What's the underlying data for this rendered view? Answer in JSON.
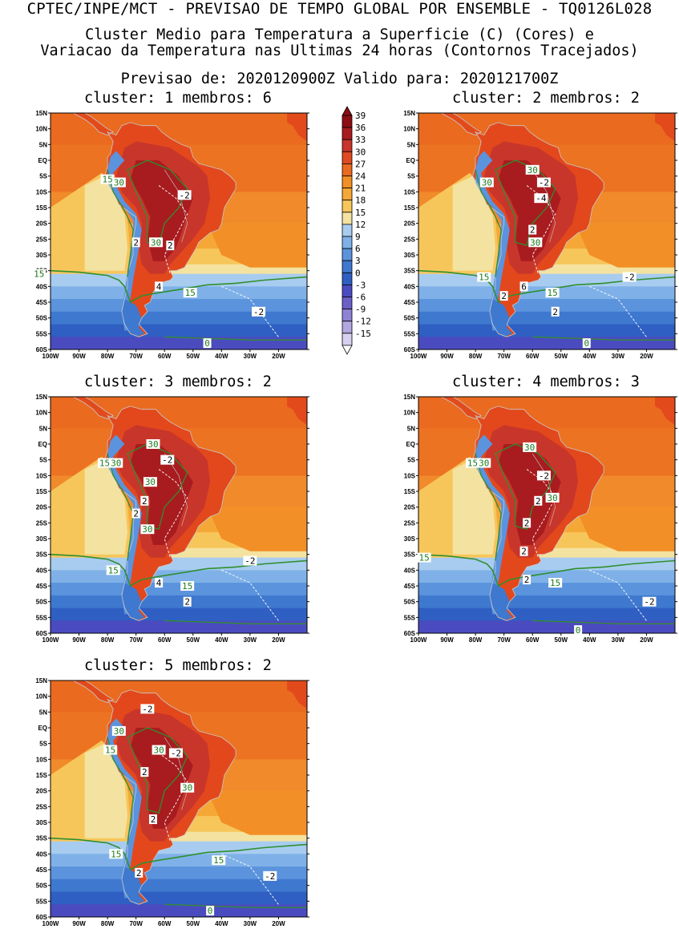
{
  "header": {
    "line1": "CPTEC/INPE/MCT - PREVISAO DE TEMPO GLOBAL POR ENSEMBLE - TQ0126L028",
    "line2": "Cluster Medio para Temperatura a Superficie (C) (Cores) e",
    "line3": "Variacao da Temperatura nas Ultimas 24 horas (Contornos Tracejados)",
    "line4": "Previsao de: 2020120900Z    Valido para: 2020121700Z"
  },
  "axes": {
    "lat_labels": [
      "15N",
      "10N",
      "5N",
      "EQ",
      "5S",
      "10S",
      "15S",
      "20S",
      "25S",
      "30S",
      "35S",
      "40S",
      "45S",
      "50S",
      "55S",
      "60S"
    ],
    "lon_labels": [
      "100W",
      "90W",
      "80W",
      "70W",
      "60W",
      "50W",
      "40W",
      "30W",
      "20W"
    ]
  },
  "colorbar": {
    "labels": [
      "39",
      "36",
      "33",
      "30",
      "27",
      "24",
      "21",
      "18",
      "15",
      "12",
      "9",
      "6",
      "3",
      "0",
      "-3",
      "-6",
      "-9",
      "-12",
      "-15"
    ],
    "colors": [
      "#8c0d12",
      "#a81c1f",
      "#c8352b",
      "#e04a20",
      "#ea6a1f",
      "#f28f26",
      "#f5a836",
      "#f7c65b",
      "#f4e2a0",
      "#a8ccef",
      "#7fb1e8",
      "#5b93dd",
      "#3f78cf",
      "#2f5fc2",
      "#4b4bc0",
      "#6b60c8",
      "#8e82d4",
      "#b2a7e0",
      "#d8d0ef"
    ]
  },
  "clusters": [
    {
      "title": "cluster: 1   membros: 6",
      "labels": [
        {
          "t": "15",
          "k": "g",
          "lon": -80,
          "lat": -6
        },
        {
          "t": "30",
          "k": "g",
          "lon": -76,
          "lat": -7
        },
        {
          "t": "-2",
          "k": "w",
          "lon": -53,
          "lat": -11
        },
        {
          "t": "2",
          "k": "w",
          "lon": -70,
          "lat": -26
        },
        {
          "t": "30",
          "k": "g",
          "lon": -63,
          "lat": -26
        },
        {
          "t": "2",
          "k": "w",
          "lon": -58,
          "lat": -27
        },
        {
          "t": "15",
          "k": "g",
          "lon": -104,
          "lat": -36
        },
        {
          "t": "4",
          "k": "w",
          "lon": -62,
          "lat": -40
        },
        {
          "t": "15",
          "k": "g",
          "lon": -51,
          "lat": -42
        },
        {
          "t": "-2",
          "k": "w",
          "lon": -27,
          "lat": -48
        },
        {
          "t": "0",
          "k": "g",
          "lon": -45,
          "lat": -58
        }
      ]
    },
    {
      "title": "cluster: 2   membros: 2",
      "labels": [
        {
          "t": "30",
          "k": "g",
          "lon": -76,
          "lat": -7
        },
        {
          "t": "30",
          "k": "g",
          "lon": -60,
          "lat": -3
        },
        {
          "t": "-2",
          "k": "w",
          "lon": -56,
          "lat": -7
        },
        {
          "t": "-4",
          "k": "w",
          "lon": -57,
          "lat": -12
        },
        {
          "t": "2",
          "k": "w",
          "lon": -60,
          "lat": -22
        },
        {
          "t": "30",
          "k": "g",
          "lon": -59,
          "lat": -26
        },
        {
          "t": "15",
          "k": "g",
          "lon": -77,
          "lat": -37
        },
        {
          "t": "-2",
          "k": "w",
          "lon": -26,
          "lat": -37
        },
        {
          "t": "6",
          "k": "w",
          "lon": -63,
          "lat": -40
        },
        {
          "t": "2",
          "k": "w",
          "lon": -70,
          "lat": -43
        },
        {
          "t": "15",
          "k": "g",
          "lon": -53,
          "lat": -42
        },
        {
          "t": "2",
          "k": "w",
          "lon": -52,
          "lat": -48
        },
        {
          "t": "0",
          "k": "g",
          "lon": -41,
          "lat": -58
        }
      ]
    },
    {
      "title": "cluster: 3   membros: 2",
      "labels": [
        {
          "t": "30",
          "k": "g",
          "lon": -64,
          "lat": 0
        },
        {
          "t": "-2",
          "k": "w",
          "lon": -59,
          "lat": -5
        },
        {
          "t": "15",
          "k": "g",
          "lon": -81,
          "lat": -6
        },
        {
          "t": "30",
          "k": "g",
          "lon": -77,
          "lat": -6
        },
        {
          "t": "30",
          "k": "g",
          "lon": -65,
          "lat": -12
        },
        {
          "t": "2",
          "k": "w",
          "lon": -67,
          "lat": -18
        },
        {
          "t": "2",
          "k": "w",
          "lon": -70,
          "lat": -22
        },
        {
          "t": "30",
          "k": "g",
          "lon": -66,
          "lat": -27
        },
        {
          "t": "-2",
          "k": "w",
          "lon": -30,
          "lat": -37
        },
        {
          "t": "15",
          "k": "g",
          "lon": -78,
          "lat": -40
        },
        {
          "t": "4",
          "k": "w",
          "lon": -62,
          "lat": -44
        },
        {
          "t": "15",
          "k": "g",
          "lon": -52,
          "lat": -45
        },
        {
          "t": "2",
          "k": "w",
          "lon": -52,
          "lat": -50
        }
      ]
    },
    {
      "title": "cluster: 4   membros: 3",
      "labels": [
        {
          "t": "30",
          "k": "g",
          "lon": -61,
          "lat": -1
        },
        {
          "t": "15",
          "k": "g",
          "lon": -81,
          "lat": -6
        },
        {
          "t": "30",
          "k": "g",
          "lon": -77,
          "lat": -6
        },
        {
          "t": "-2",
          "k": "w",
          "lon": -56,
          "lat": -10
        },
        {
          "t": "30",
          "k": "g",
          "lon": -53,
          "lat": -17
        },
        {
          "t": "2",
          "k": "w",
          "lon": -58,
          "lat": -18
        },
        {
          "t": "2",
          "k": "w",
          "lon": -62,
          "lat": -25
        },
        {
          "t": "2",
          "k": "w",
          "lon": -63,
          "lat": -34
        },
        {
          "t": "15",
          "k": "g",
          "lon": -98,
          "lat": -36
        },
        {
          "t": "2",
          "k": "w",
          "lon": -62,
          "lat": -43
        },
        {
          "t": "15",
          "k": "g",
          "lon": -52,
          "lat": -44
        },
        {
          "t": "-2",
          "k": "w",
          "lon": -19,
          "lat": -50
        },
        {
          "t": "0",
          "k": "g",
          "lon": -44,
          "lat": -59
        }
      ]
    },
    {
      "title": "cluster: 5   membros: 2",
      "labels": [
        {
          "t": "-2",
          "k": "w",
          "lon": -66,
          "lat": 6
        },
        {
          "t": "30",
          "k": "g",
          "lon": -76,
          "lat": -1
        },
        {
          "t": "15",
          "k": "g",
          "lon": -79,
          "lat": -7
        },
        {
          "t": "30",
          "k": "g",
          "lon": -62,
          "lat": -7
        },
        {
          "t": "-2",
          "k": "w",
          "lon": -56,
          "lat": -8
        },
        {
          "t": "2",
          "k": "w",
          "lon": -67,
          "lat": -14
        },
        {
          "t": "30",
          "k": "g",
          "lon": -52,
          "lat": -19
        },
        {
          "t": "2",
          "k": "w",
          "lon": -64,
          "lat": -29
        },
        {
          "t": "15",
          "k": "g",
          "lon": -77,
          "lat": -40
        },
        {
          "t": "15",
          "k": "g",
          "lon": -41,
          "lat": -42
        },
        {
          "t": "2",
          "k": "w",
          "lon": -69,
          "lat": -46
        },
        {
          "t": "-2",
          "k": "w",
          "lon": -23,
          "lat": -47
        },
        {
          "t": "0",
          "k": "g",
          "lon": -44,
          "lat": -58
        }
      ]
    }
  ]
}
